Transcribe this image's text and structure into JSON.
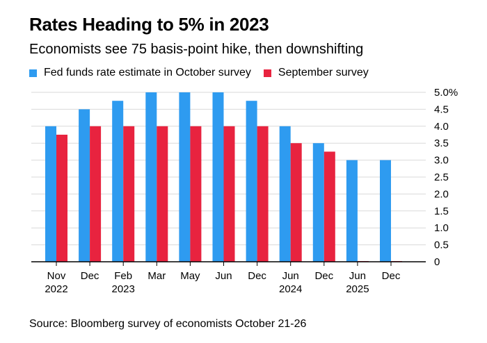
{
  "header": {
    "title": "Rates Heading to 5% in 2023",
    "subtitle": "Economists see 75 basis-point hike, then downshifting"
  },
  "footer": {
    "source": "Source: Bloomberg survey of economists October 21-26"
  },
  "colors": {
    "october": "#2E9BF0",
    "september": "#E8233F",
    "grid": "#D9D9D9",
    "axis": "#000000"
  },
  "chart_data": {
    "type": "bar",
    "title": "Rates Heading to 5% in 2023",
    "subtitle": "Economists see 75 basis-point hike, then downshifting",
    "categories": [
      "Nov 2022",
      "Dec",
      "Feb 2023",
      "Mar",
      "May",
      "Jun",
      "Dec",
      "Jun 2024",
      "Dec",
      "Jun 2025",
      "Dec"
    ],
    "category_labels": [
      [
        "Nov",
        "2022"
      ],
      [
        "Dec",
        ""
      ],
      [
        "Feb",
        "2023"
      ],
      [
        "Mar",
        ""
      ],
      [
        "May",
        ""
      ],
      [
        "Jun",
        ""
      ],
      [
        "Dec",
        ""
      ],
      [
        "Jun",
        "2024"
      ],
      [
        "Dec",
        ""
      ],
      [
        "Jun",
        "2025"
      ],
      [
        "Dec",
        ""
      ]
    ],
    "series": [
      {
        "name": "Fed funds rate estimate in October survey",
        "values": [
          4.0,
          4.5,
          4.75,
          5.0,
          5.0,
          5.0,
          4.75,
          4.0,
          3.5,
          3.0,
          3.0
        ]
      },
      {
        "name": "September survey",
        "values": [
          3.75,
          4.0,
          4.0,
          4.0,
          4.0,
          4.0,
          4.0,
          3.5,
          3.25,
          0,
          0
        ]
      }
    ],
    "ylim": [
      0,
      5
    ],
    "yticks": [
      {
        "value": 5.0,
        "label": "5.0%"
      },
      {
        "value": 4.5,
        "label": "4.5"
      },
      {
        "value": 4.0,
        "label": "4.0"
      },
      {
        "value": 3.5,
        "label": "3.5"
      },
      {
        "value": 3.0,
        "label": "3.0"
      },
      {
        "value": 2.5,
        "label": "2.5"
      },
      {
        "value": 2.0,
        "label": "2.0"
      },
      {
        "value": 1.5,
        "label": "1.5"
      },
      {
        "value": 1.0,
        "label": "1.0"
      },
      {
        "value": 0.5,
        "label": "0.5"
      },
      {
        "value": 0,
        "label": "0"
      }
    ],
    "xlabel": "",
    "ylabel": "",
    "grid": true,
    "legend_position": "top-left",
    "y_axis_side": "right"
  }
}
